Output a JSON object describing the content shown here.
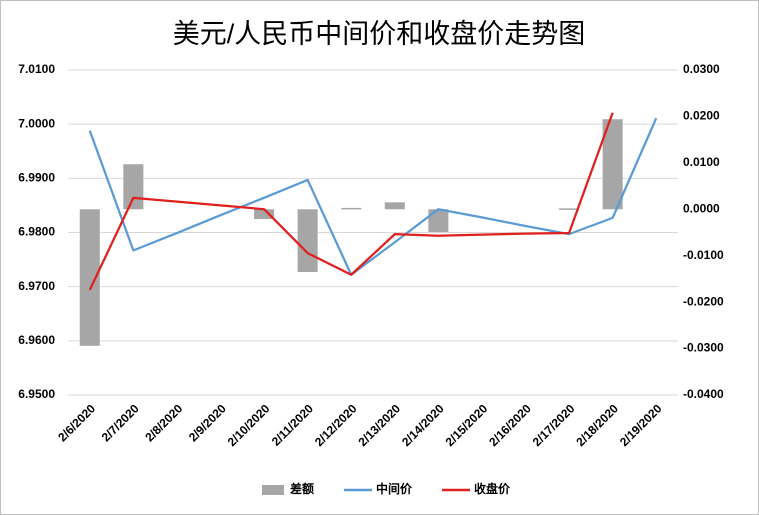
{
  "chart_data": {
    "type": "combo",
    "title": "美元/人民币中间价和收盘价走势图",
    "categories": [
      "2/6/2020",
      "2/7/2020",
      "2/8/2020",
      "2/9/2020",
      "2/10/2020",
      "2/11/2020",
      "2/12/2020",
      "2/13/2020",
      "2/14/2020",
      "2/15/2020",
      "2/16/2020",
      "2/17/2020",
      "2/18/2020",
      "2/19/2020"
    ],
    "series": [
      {
        "name": "差额",
        "type": "bar",
        "axis": "y2",
        "color": "#a6a6a6",
        "values": [
          -0.0294,
          0.0097,
          null,
          null,
          -0.0021,
          -0.0135,
          0.0003,
          0.0015,
          -0.0049,
          null,
          null,
          0.0002,
          0.0194,
          null
        ]
      },
      {
        "name": "中间价",
        "type": "line",
        "color": "#5b9bd5",
        "values": [
          6.9988,
          6.9767,
          6.9799,
          6.9832,
          6.9864,
          6.9897,
          6.9722,
          6.9782,
          6.9843,
          6.9828,
          6.9812,
          6.9797,
          6.9827,
          7.0011
        ]
      },
      {
        "name": "收盘价",
        "type": "line",
        "color": "#e0201f",
        "values": [
          6.9694,
          6.9864,
          6.9857,
          6.985,
          6.9843,
          6.9762,
          6.9722,
          6.9797,
          6.9794,
          6.9796,
          6.9798,
          6.9799,
          7.0021,
          null
        ]
      }
    ],
    "ylim": [
      6.95,
      7.01
    ],
    "yticks": [
      {
        "value": 6.95,
        "label": "6.9500"
      },
      {
        "value": 6.96,
        "label": "6.9600"
      },
      {
        "value": 6.97,
        "label": "6.9700"
      },
      {
        "value": 6.98,
        "label": "6.9800"
      },
      {
        "value": 6.99,
        "label": "6.9900"
      },
      {
        "value": 7.0,
        "label": "7.0000"
      },
      {
        "value": 7.01,
        "label": "7.0100"
      }
    ],
    "y2lim": [
      -0.04,
      0.03
    ],
    "y2ticks": [
      {
        "value": -0.04,
        "label": "-0.0400"
      },
      {
        "value": -0.03,
        "label": "-0.0300"
      },
      {
        "value": -0.02,
        "label": "-0.0200"
      },
      {
        "value": -0.01,
        "label": "-0.0100"
      },
      {
        "value": 0,
        "label": "0.0000"
      },
      {
        "value": 0.01,
        "label": "0.0100"
      },
      {
        "value": 0.02,
        "label": "0.0200"
      },
      {
        "value": 0.03,
        "label": "0.0300"
      }
    ],
    "grid": true,
    "legend": "bottom"
  }
}
